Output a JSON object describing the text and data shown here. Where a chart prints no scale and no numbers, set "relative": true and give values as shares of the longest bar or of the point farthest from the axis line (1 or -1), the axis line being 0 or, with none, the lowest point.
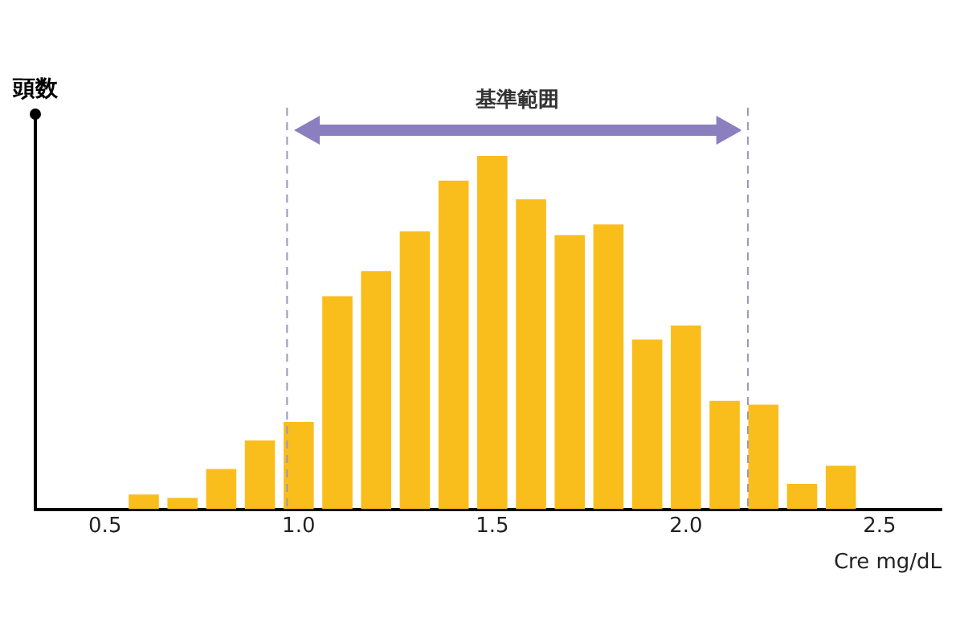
{
  "chart_data": {
    "type": "bar",
    "relative": true,
    "ylabel": "頭数",
    "xlabel": "Cre mg/dL",
    "x": [
      0.6,
      0.7,
      0.8,
      0.9,
      1.0,
      1.1,
      1.2,
      1.3,
      1.4,
      1.5,
      1.6,
      1.7,
      1.8,
      1.9,
      2.0,
      2.1,
      2.2,
      2.3,
      2.4
    ],
    "values": [
      0.042,
      0.032,
      0.114,
      0.195,
      0.247,
      0.603,
      0.674,
      0.787,
      0.93,
      1,
      0.877,
      0.776,
      0.806,
      0.48,
      0.52,
      0.307,
      0.296,
      0.072,
      0.123
    ],
    "color": "#f9be1c",
    "xlim": [
      0.32,
      2.66
    ],
    "xticks": [
      0.5,
      {
        "value": 1,
        "label": "1.0"
      },
      1.5,
      {
        "value": 2,
        "label": "2.0"
      },
      2.5
    ],
    "ref_lines": [
      {
        "axis": "x",
        "value": 0.97,
        "color": "#9a9ab8",
        "line_style": "dashed"
      },
      {
        "axis": "x",
        "value": 2.16,
        "color": "#9a9ab8",
        "line_style": "dashed"
      }
    ],
    "annotations": [
      "基準範囲"
    ],
    "grid": false,
    "legend": false
  }
}
